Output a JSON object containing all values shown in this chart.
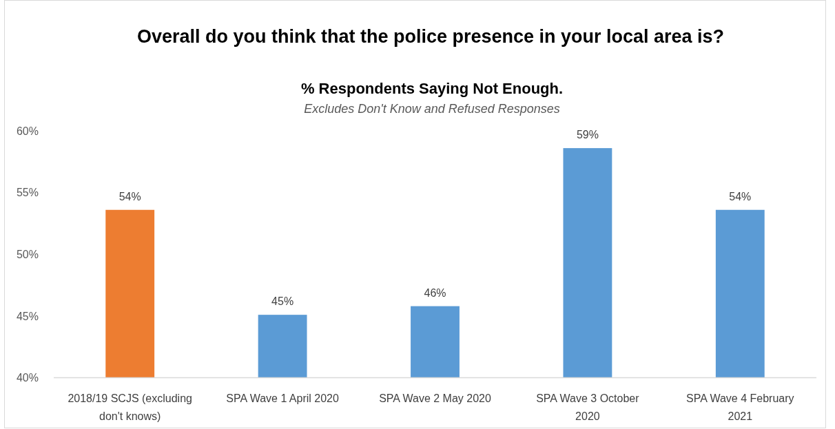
{
  "chart_data": {
    "type": "bar",
    "title": "Overall do you think that the police presence in your local area is?",
    "subtitle": "% Respondents Saying Not Enough.",
    "annotations": [
      "Excludes Don't Know and Refused Responses"
    ],
    "categories": [
      "2018/19 SCJS (excluding don't knows)",
      "SPA Wave 1 April 2020",
      "SPA Wave 2 May 2020",
      "SPA Wave 3 October 2020",
      "SPA Wave 4 February 2021"
    ],
    "values": [
      53.6,
      45.1,
      45.8,
      58.6,
      53.6
    ],
    "colors": [
      "#ed7d31",
      "#5b9bd5",
      "#5b9bd5",
      "#5b9bd5",
      "#5b9bd5"
    ],
    "value_labels": [
      "54%",
      "45%",
      "46%",
      "59%",
      "54%"
    ],
    "ylim": [
      40,
      60
    ],
    "yticks": [
      {
        "value": 40,
        "label": "40%"
      },
      {
        "value": 45,
        "label": "45%"
      },
      {
        "value": 50,
        "label": "50%"
      },
      {
        "value": 55,
        "label": "55%"
      },
      {
        "value": 60,
        "label": "60%"
      }
    ]
  }
}
